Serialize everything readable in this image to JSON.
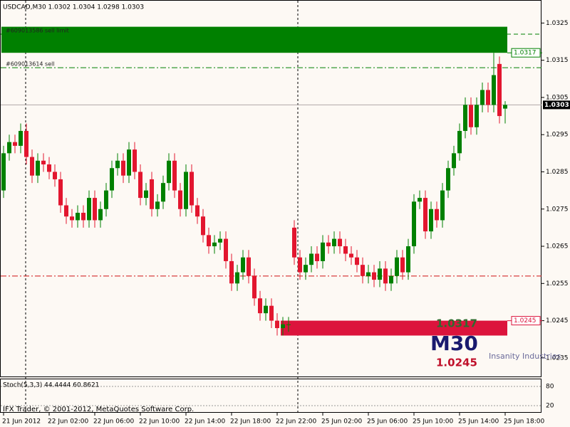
{
  "chart_data": {
    "type": "candlestick",
    "title": "USDCAD,M30  1.0302 1.0304 1.0298 1.0303",
    "categories": [
      "21 Jun 2012",
      null,
      null,
      null,
      null,
      null,
      null,
      null,
      "22 Jun 02:00",
      null,
      null,
      null,
      null,
      null,
      null,
      null,
      "22 Jun 06:00",
      null,
      null,
      null,
      null,
      null,
      null,
      null,
      "22 Jun 10:00",
      null,
      null,
      null,
      null,
      null,
      null,
      null,
      "22 Jun 14:00",
      null,
      null,
      null,
      null,
      null,
      null,
      null,
      "22 Jun 18:00",
      null,
      null,
      null,
      null,
      null,
      null,
      null,
      "22 Jun 22:00",
      null,
      null,
      null,
      null,
      null,
      null,
      null,
      "25 Jun 02:00",
      null,
      null,
      null,
      null,
      null,
      null,
      null,
      "25 Jun 06:00",
      null,
      null,
      null,
      null,
      null,
      null,
      null,
      "25 Jun 10:00",
      null,
      null,
      null,
      null,
      null,
      null,
      null,
      "25 Jun 14:00",
      null,
      null,
      null,
      null,
      null,
      null,
      null,
      "25 Jun 18:00"
    ],
    "open": [
      1.028,
      1.029,
      1.0293,
      1.0292,
      1.0296,
      1.0289,
      1.0284,
      1.0288,
      1.0287,
      1.0285,
      1.0283,
      1.0276,
      1.0273,
      1.0272,
      1.0274,
      1.0272,
      1.0278,
      1.0272,
      1.0275,
      1.028,
      1.0286,
      1.0288,
      1.0284,
      1.0291,
      1.0285,
      1.0278,
      1.0283,
      1.0275,
      1.0277,
      1.0282,
      1.0288,
      1.028,
      1.0275,
      1.0285,
      1.0276,
      1.0273,
      1.0268,
      1.0265,
      1.0266,
      1.0267,
      1.0261,
      1.0255,
      1.0258,
      1.0262,
      1.0257,
      1.0251,
      1.0247,
      1.0249,
      1.0245,
      1.0243,
      1.0244,
      1.027,
      1.0262,
      1.0258,
      1.026,
      1.0263,
      1.0261,
      1.0266,
      1.0265,
      1.0267,
      1.0265,
      1.0263,
      1.0262,
      1.026,
      1.0257,
      1.0258,
      1.0256,
      1.0259,
      1.0255,
      1.0257,
      1.0262,
      1.0258,
      1.0265,
      1.0277,
      1.0278,
      1.0269,
      1.0275,
      1.0272,
      1.028,
      1.0286,
      1.029,
      1.0296,
      1.0303,
      1.0297,
      1.0303,
      1.0307,
      1.0303,
      1.0314,
      1.0302
    ],
    "high": [
      1.0292,
      1.0295,
      1.0295,
      1.0298,
      1.0298,
      1.0291,
      1.029,
      1.029,
      1.0289,
      1.0287,
      1.0285,
      1.0278,
      1.0275,
      1.0276,
      1.0276,
      1.028,
      1.028,
      1.0277,
      1.0282,
      1.0288,
      1.029,
      1.029,
      1.0293,
      1.0293,
      1.0287,
      1.0282,
      1.0285,
      1.0279,
      1.0284,
      1.029,
      1.029,
      1.0282,
      1.0287,
      1.0287,
      1.0278,
      1.0275,
      1.027,
      1.0268,
      1.0269,
      1.0269,
      1.0263,
      1.026,
      1.0264,
      1.0264,
      1.0259,
      1.0253,
      1.0251,
      1.0251,
      1.0247,
      1.0246,
      1.0246,
      1.0272,
      1.0264,
      1.0262,
      1.0265,
      1.0265,
      1.0268,
      1.0268,
      1.0269,
      1.0269,
      1.0267,
      1.0265,
      1.0264,
      1.0262,
      1.026,
      1.026,
      1.0261,
      1.0261,
      1.0259,
      1.0264,
      1.0264,
      1.0267,
      1.0279,
      1.028,
      1.028,
      1.0277,
      1.0277,
      1.0282,
      1.0288,
      1.0292,
      1.0298,
      1.0305,
      1.0305,
      1.0305,
      1.0309,
      1.0309,
      1.0317,
      1.0316,
      1.0304
    ],
    "low": [
      1.0278,
      1.0288,
      1.029,
      1.029,
      1.0287,
      1.0282,
      1.0282,
      1.0285,
      1.0283,
      1.0281,
      1.0274,
      1.0271,
      1.027,
      1.027,
      1.027,
      1.027,
      1.027,
      1.027,
      1.0273,
      1.0278,
      1.0284,
      1.0282,
      1.0282,
      1.0283,
      1.0276,
      1.0276,
      1.0273,
      1.0273,
      1.0275,
      1.028,
      1.0278,
      1.0273,
      1.0273,
      1.0274,
      1.0271,
      1.0266,
      1.0263,
      1.0263,
      1.0264,
      1.0259,
      1.0253,
      1.0253,
      1.0256,
      1.0255,
      1.0249,
      1.0245,
      1.0245,
      1.0243,
      1.0241,
      1.0241,
      1.0242,
      1.026,
      1.0256,
      1.0256,
      1.0258,
      1.0259,
      1.0259,
      1.0263,
      1.0263,
      1.0263,
      1.0261,
      1.026,
      1.0258,
      1.0255,
      1.0255,
      1.0254,
      1.0254,
      1.0253,
      1.0253,
      1.0255,
      1.0256,
      1.0256,
      1.0263,
      1.0275,
      1.0267,
      1.0267,
      1.027,
      1.027,
      1.0278,
      1.0284,
      1.0288,
      1.0294,
      1.0295,
      1.0295,
      1.0301,
      1.0301,
      1.0301,
      1.0298,
      1.0298
    ],
    "close": [
      1.029,
      1.0293,
      1.0292,
      1.0296,
      1.0289,
      1.0284,
      1.0288,
      1.0287,
      1.0285,
      1.0283,
      1.0276,
      1.0273,
      1.0272,
      1.0274,
      1.0272,
      1.0278,
      1.0272,
      1.0275,
      1.028,
      1.0286,
      1.0288,
      1.0284,
      1.0291,
      1.0285,
      1.0278,
      1.028,
      1.0275,
      1.0277,
      1.0282,
      1.0288,
      1.028,
      1.0275,
      1.0285,
      1.0276,
      1.0273,
      1.0268,
      1.0265,
      1.0266,
      1.0267,
      1.0261,
      1.0255,
      1.0258,
      1.0262,
      1.0257,
      1.0251,
      1.0247,
      1.0249,
      1.0245,
      1.0243,
      1.0244,
      1.0244,
      1.0262,
      1.0258,
      1.026,
      1.0263,
      1.0261,
      1.0266,
      1.0265,
      1.0267,
      1.0265,
      1.0263,
      1.0262,
      1.026,
      1.0257,
      1.0258,
      1.0256,
      1.0259,
      1.0255,
      1.0257,
      1.0262,
      1.0258,
      1.0265,
      1.0277,
      1.0278,
      1.0269,
      1.0275,
      1.0272,
      1.028,
      1.0286,
      1.029,
      1.0296,
      1.0303,
      1.0297,
      1.0303,
      1.0307,
      1.0303,
      1.0311,
      1.03,
      1.0303
    ],
    "up_color": "#008000",
    "down_color": "#e2162f",
    "ylim": [
      1.023,
      1.0331
    ],
    "yticks": [
      1.0325,
      1.0315,
      1.0305,
      1.0295,
      1.0285,
      1.0275,
      1.0265,
      1.0255,
      1.0245,
      1.0235
    ],
    "bid": 1.0303,
    "orders": [
      {
        "label": "#609013586 sell limit",
        "price": 1.0322,
        "color": "#008000"
      },
      {
        "label": "#609013614 sell",
        "price": 1.0313,
        "color": "#008000"
      }
    ],
    "level": {
      "price": 1.0257,
      "color": "#d01010"
    },
    "zones": [
      {
        "low": 1.0317,
        "high": 1.0324,
        "start": 0,
        "color": "#008000",
        "marked": "low"
      },
      {
        "low": 1.0241,
        "high": 1.0245,
        "start": 49,
        "color": "#dc143c",
        "marked": "high"
      }
    ],
    "overlay": {
      "high_text": "1.0317",
      "period": "M30",
      "low_text": "1.0245",
      "brand": "Insanity Industries"
    },
    "indicator": {
      "label": "Stoch(5,3,3) 44.4444 60.8621",
      "y2lim": [
        0,
        100
      ],
      "y2ticks": [
        80,
        20
      ]
    },
    "copyright": "IFX Trader, © 2001-2012, MetaQuotes Software Corp."
  }
}
